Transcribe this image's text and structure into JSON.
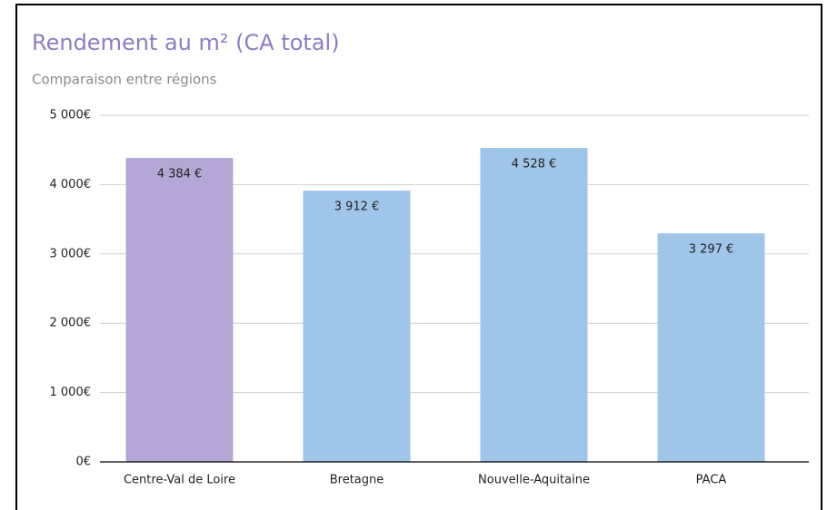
{
  "chart_data": {
    "type": "bar",
    "title": "Rendement au m² (CA total)",
    "subtitle": "Comparaison entre régions",
    "categories": [
      "Centre-Val de Loire",
      "Bretagne",
      "Nouvelle-Aquitaine",
      "PACA"
    ],
    "values": [
      4384,
      3912,
      4528,
      3297
    ],
    "value_labels": [
      "4 384 €",
      "3 912 €",
      "4 528 €",
      "3 297 €"
    ],
    "colors": [
      "#b4a7d6",
      "#9fc5e8",
      "#9fc5e8",
      "#9fc5e8"
    ],
    "ylim": [
      0,
      5000
    ],
    "yticks": [
      {
        "value": 0,
        "label": "0€"
      },
      {
        "value": 1000,
        "label": "1 000€"
      },
      {
        "value": 2000,
        "label": "2 000€"
      },
      {
        "value": 3000,
        "label": "3 000€"
      },
      {
        "value": 4000,
        "label": "4 000€"
      },
      {
        "value": 5000,
        "label": "5 000€"
      }
    ],
    "grid": true
  }
}
